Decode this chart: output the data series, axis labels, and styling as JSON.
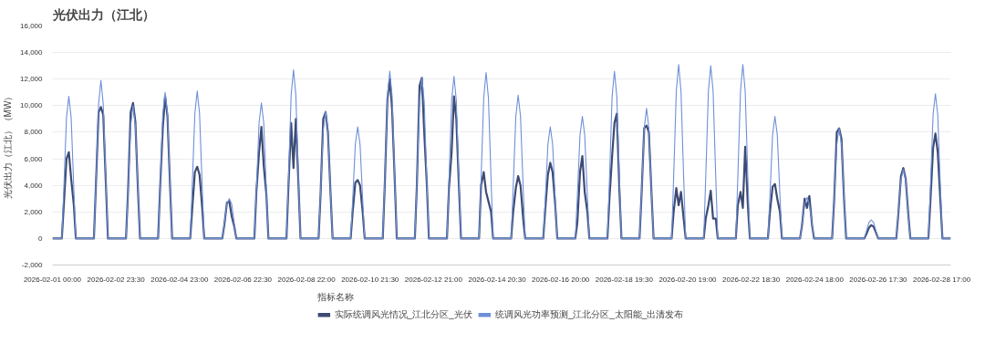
{
  "chart_data": {
    "type": "line",
    "title": "光伏出力（江北）",
    "ylabel": "光伏出力（江北）（MW）",
    "legend_title": "指标名称",
    "x": [
      "2026-02-01T00:00",
      "2026-02-01T07:00",
      "2026-02-01T08:30",
      "2026-02-01T10:30",
      "2026-02-01T12:15",
      "2026-02-01T14:00",
      "2026-02-01T16:00",
      "2026-02-01T17:30",
      "2026-02-02T07:00",
      "2026-02-02T08:30",
      "2026-02-02T10:30",
      "2026-02-02T12:15",
      "2026-02-02T14:00",
      "2026-02-02T16:00",
      "2026-02-02T17:30",
      "2026-02-03T07:00",
      "2026-02-03T08:30",
      "2026-02-03T10:30",
      "2026-02-03T12:15",
      "2026-02-03T14:00",
      "2026-02-03T16:00",
      "2026-02-03T17:30",
      "2026-02-04T07:00",
      "2026-02-04T08:30",
      "2026-02-04T10:30",
      "2026-02-04T12:15",
      "2026-02-04T14:00",
      "2026-02-04T16:00",
      "2026-02-04T17:30",
      "2026-02-05T07:00",
      "2026-02-05T08:30",
      "2026-02-05T10:30",
      "2026-02-05T12:15",
      "2026-02-05T14:00",
      "2026-02-05T16:00",
      "2026-02-05T17:30",
      "2026-02-06T07:00",
      "2026-02-06T08:30",
      "2026-02-06T10:30",
      "2026-02-06T12:15",
      "2026-02-06T14:00",
      "2026-02-06T16:00",
      "2026-02-06T17:30",
      "2026-02-07T07:00",
      "2026-02-07T08:30",
      "2026-02-07T10:30",
      "2026-02-07T12:15",
      "2026-02-07T14:00",
      "2026-02-07T16:00",
      "2026-02-07T17:30",
      "2026-02-08T07:00",
      "2026-02-08T08:30",
      "2026-02-08T10:30",
      "2026-02-08T12:15",
      "2026-02-08T14:00",
      "2026-02-08T16:00",
      "2026-02-08T17:30",
      "2026-02-09T07:00",
      "2026-02-09T08:30",
      "2026-02-09T10:30",
      "2026-02-09T12:15",
      "2026-02-09T14:00",
      "2026-02-09T16:00",
      "2026-02-09T17:30",
      "2026-02-10T07:00",
      "2026-02-10T08:30",
      "2026-02-10T10:30",
      "2026-02-10T12:15",
      "2026-02-10T14:00",
      "2026-02-10T16:00",
      "2026-02-10T17:30",
      "2026-02-11T07:00",
      "2026-02-11T08:30",
      "2026-02-11T10:30",
      "2026-02-11T12:15",
      "2026-02-11T14:00",
      "2026-02-11T16:00",
      "2026-02-11T17:30",
      "2026-02-12T07:00",
      "2026-02-12T08:30",
      "2026-02-12T10:30",
      "2026-02-12T12:15",
      "2026-02-12T14:00",
      "2026-02-12T16:00",
      "2026-02-12T17:30",
      "2026-02-13T07:00",
      "2026-02-13T08:30",
      "2026-02-13T10:30",
      "2026-02-13T12:15",
      "2026-02-13T14:00",
      "2026-02-13T16:00",
      "2026-02-13T17:30",
      "2026-02-14T07:00",
      "2026-02-14T08:30",
      "2026-02-14T10:30",
      "2026-02-14T12:15",
      "2026-02-14T14:00",
      "2026-02-14T16:00",
      "2026-02-14T17:30",
      "2026-02-15T07:00",
      "2026-02-15T08:30",
      "2026-02-15T10:30",
      "2026-02-15T12:15",
      "2026-02-15T14:00",
      "2026-02-15T16:00",
      "2026-02-15T17:30",
      "2026-02-16T07:00",
      "2026-02-16T08:30",
      "2026-02-16T10:30",
      "2026-02-16T12:15",
      "2026-02-16T14:00",
      "2026-02-16T16:00",
      "2026-02-16T17:30",
      "2026-02-17T07:00",
      "2026-02-17T08:30",
      "2026-02-17T10:30",
      "2026-02-17T12:15",
      "2026-02-17T14:00",
      "2026-02-17T16:00",
      "2026-02-17T17:30",
      "2026-02-18T07:00",
      "2026-02-18T08:30",
      "2026-02-18T10:30",
      "2026-02-18T12:15",
      "2026-02-18T14:00",
      "2026-02-18T16:00",
      "2026-02-18T17:30",
      "2026-02-19T07:00",
      "2026-02-19T08:30",
      "2026-02-19T10:30",
      "2026-02-19T12:15",
      "2026-02-19T14:00",
      "2026-02-19T16:00",
      "2026-02-19T17:30",
      "2026-02-20T07:00",
      "2026-02-20T08:30",
      "2026-02-20T10:30",
      "2026-02-20T12:15",
      "2026-02-20T14:00",
      "2026-02-20T16:00",
      "2026-02-20T17:30",
      "2026-02-21T07:00",
      "2026-02-21T08:30",
      "2026-02-21T10:30",
      "2026-02-21T12:15",
      "2026-02-21T14:00",
      "2026-02-21T16:00",
      "2026-02-21T17:30",
      "2026-02-22T07:00",
      "2026-02-22T08:30",
      "2026-02-22T10:30",
      "2026-02-22T12:15",
      "2026-02-22T14:00",
      "2026-02-22T16:00",
      "2026-02-22T17:30",
      "2026-02-23T07:00",
      "2026-02-23T08:30",
      "2026-02-23T10:30",
      "2026-02-23T12:15",
      "2026-02-23T14:00",
      "2026-02-23T16:00",
      "2026-02-23T17:30",
      "2026-02-24T07:00",
      "2026-02-24T08:30",
      "2026-02-24T10:30",
      "2026-02-24T12:15",
      "2026-02-24T14:00",
      "2026-02-24T16:00",
      "2026-02-24T17:30",
      "2026-02-25T07:00",
      "2026-02-25T08:30",
      "2026-02-25T10:30",
      "2026-02-25T12:15",
      "2026-02-25T14:00",
      "2026-02-25T16:00",
      "2026-02-25T17:30",
      "2026-02-26T07:00",
      "2026-02-26T08:30",
      "2026-02-26T10:30",
      "2026-02-26T12:15",
      "2026-02-26T14:00",
      "2026-02-26T16:00",
      "2026-02-26T17:30",
      "2026-02-27T07:00",
      "2026-02-27T08:30",
      "2026-02-27T10:30",
      "2026-02-27T12:15",
      "2026-02-27T14:00",
      "2026-02-27T16:00",
      "2026-02-27T17:30",
      "2026-02-28T07:00",
      "2026-02-28T08:30",
      "2026-02-28T10:30",
      "2026-02-28T12:15",
      "2026-02-28T14:00",
      "2026-02-28T16:00",
      "2026-02-28T17:30",
      "2026-02-28T23:45"
    ],
    "series": [
      {
        "name": "实际统调风光情况_江北分区_光伏",
        "color": "#3d4b73",
        "values": [
          0,
          0,
          2500,
          6000,
          6500,
          4500,
          2500,
          0,
          0,
          4000,
          9500,
          9900,
          9300,
          4000,
          0,
          0,
          3500,
          9500,
          10200,
          8800,
          3500,
          0,
          0,
          3800,
          8300,
          10700,
          9200,
          3800,
          0,
          0,
          2200,
          5000,
          5400,
          4800,
          2300,
          0,
          0,
          1000,
          2700,
          2800,
          1700,
          900,
          0,
          0,
          3500,
          6500,
          8400,
          5500,
          3300,
          0,
          0,
          4000,
          8700,
          5300,
          9000,
          4000,
          0,
          0,
          3300,
          9000,
          9500,
          8000,
          3300,
          0,
          0,
          2000,
          4200,
          4400,
          4000,
          2000,
          0,
          0,
          4000,
          10500,
          12000,
          9700,
          4300,
          0,
          0,
          4000,
          11500,
          12100,
          8000,
          4000,
          0,
          0,
          3800,
          6500,
          10700,
          9000,
          3800,
          0,
          0,
          4000,
          5000,
          3500,
          2800,
          2000,
          0,
          0,
          2000,
          3800,
          4700,
          4000,
          1500,
          0,
          0,
          2200,
          4800,
          5700,
          5000,
          2500,
          0,
          0,
          1200,
          5000,
          6200,
          3500,
          2000,
          0,
          0,
          3000,
          6200,
          8700,
          9400,
          3500,
          0,
          0,
          3300,
          8300,
          8500,
          8000,
          3300,
          0,
          0,
          2000,
          3800,
          2500,
          3500,
          1500,
          0,
          0,
          1500,
          2500,
          3600,
          1500,
          1500,
          0,
          0,
          2500,
          3500,
          2300,
          6900,
          2500,
          0,
          0,
          2000,
          3900,
          4100,
          3000,
          2000,
          0,
          0,
          1000,
          3000,
          2300,
          3200,
          1000,
          0,
          0,
          2800,
          8000,
          8300,
          7500,
          2800,
          0,
          0,
          300,
          800,
          1000,
          900,
          400,
          0,
          0,
          1800,
          4700,
          5300,
          4500,
          1800,
          0,
          0,
          2800,
          6800,
          7900,
          6500,
          2800,
          0,
          0
        ]
      },
      {
        "name": "统调风光功率预测_江北分区_太阳能_出清发布",
        "color": "#6e8fd8",
        "values": [
          0,
          0,
          3700,
          9100,
          10700,
          9100,
          3700,
          0,
          0,
          4200,
          10100,
          11900,
          10100,
          4200,
          0,
          0,
          3500,
          8500,
          10000,
          8500,
          3500,
          0,
          0,
          3900,
          9400,
          11000,
          9400,
          3900,
          0,
          0,
          3900,
          9400,
          11100,
          9400,
          3900,
          0,
          0,
          1100,
          2600,
          3000,
          2600,
          1100,
          0,
          0,
          3600,
          8700,
          10200,
          8700,
          3600,
          0,
          0,
          4400,
          10800,
          12700,
          10800,
          4400,
          0,
          0,
          3400,
          8200,
          9600,
          8200,
          3400,
          0,
          0,
          2900,
          7100,
          8400,
          7100,
          2900,
          0,
          0,
          4400,
          10700,
          12600,
          10700,
          4400,
          0,
          0,
          4200,
          10300,
          12100,
          10300,
          4200,
          0,
          0,
          4300,
          10400,
          12200,
          10400,
          4300,
          0,
          0,
          4400,
          10600,
          12500,
          10600,
          4400,
          0,
          0,
          3800,
          9200,
          10800,
          9200,
          3800,
          0,
          0,
          2900,
          7100,
          8400,
          7100,
          2900,
          0,
          0,
          3200,
          7800,
          9200,
          7800,
          3200,
          0,
          0,
          4400,
          10700,
          12600,
          10700,
          4400,
          0,
          0,
          3400,
          8300,
          9800,
          8300,
          3400,
          0,
          0,
          4600,
          11100,
          13100,
          11100,
          4600,
          0,
          0,
          4600,
          11100,
          13000,
          11100,
          4600,
          0,
          0,
          4600,
          11100,
          13100,
          11100,
          4600,
          0,
          0,
          3200,
          7800,
          9200,
          7800,
          3200,
          0,
          0,
          1100,
          2600,
          3100,
          2600,
          1100,
          0,
          0,
          2900,
          7100,
          8300,
          7100,
          2900,
          0,
          0,
          500,
          1200,
          1400,
          1200,
          500,
          0,
          0,
          1800,
          4400,
          5200,
          4400,
          1800,
          0,
          0,
          3800,
          9300,
          10900,
          9300,
          3800,
          0,
          0
        ]
      }
    ],
    "xlim": [
      "2026-02-01T00:00",
      "2026-02-28T23:45"
    ],
    "xticks": [
      {
        "value": "2026-02-01T00:00",
        "label": "2026-02-01 00:00"
      },
      {
        "value": "2026-02-02T23:30",
        "label": "2026-02-02 23:30"
      },
      {
        "value": "2026-02-04T23:00",
        "label": "2026-02-04 23:00"
      },
      {
        "value": "2026-02-06T22:30",
        "label": "2026-02-06 22:30"
      },
      {
        "value": "2026-02-08T22:00",
        "label": "2026-02-08 22:00"
      },
      {
        "value": "2026-02-10T21:30",
        "label": "2026-02-10 21:30"
      },
      {
        "value": "2026-02-12T21:00",
        "label": "2026-02-12 21:00"
      },
      {
        "value": "2026-02-14T20:30",
        "label": "2026-02-14 20:30"
      },
      {
        "value": "2026-02-16T20:00",
        "label": "2026-02-16 20:00"
      },
      {
        "value": "2026-02-18T19:30",
        "label": "2026-02-18 19:30"
      },
      {
        "value": "2026-02-20T19:00",
        "label": "2026-02-20 19:00"
      },
      {
        "value": "2026-02-22T18:30",
        "label": "2026-02-22 18:30"
      },
      {
        "value": "2026-02-24T18:00",
        "label": "2026-02-24 18:00"
      },
      {
        "value": "2026-02-26T17:30",
        "label": "2026-02-26 17:30"
      },
      {
        "value": "2026-02-28T17:00",
        "label": "2026-02-28 17:00"
      }
    ],
    "ylim": [
      -2000,
      16000
    ],
    "yticks": [
      {
        "value": -2000,
        "label": "-2,000"
      },
      0,
      {
        "value": 2000,
        "label": "2,000"
      },
      {
        "value": 4000,
        "label": "4,000"
      },
      {
        "value": 6000,
        "label": "6,000"
      },
      {
        "value": 8000,
        "label": "8,000"
      },
      {
        "value": 10000,
        "label": "10,000"
      },
      {
        "value": 12000,
        "label": "12,000"
      },
      {
        "value": 14000,
        "label": "14,000"
      },
      {
        "value": 16000,
        "label": "16,000"
      }
    ],
    "grid": "y",
    "legend": "bottom",
    "marker": "none",
    "line_style": "solid"
  }
}
